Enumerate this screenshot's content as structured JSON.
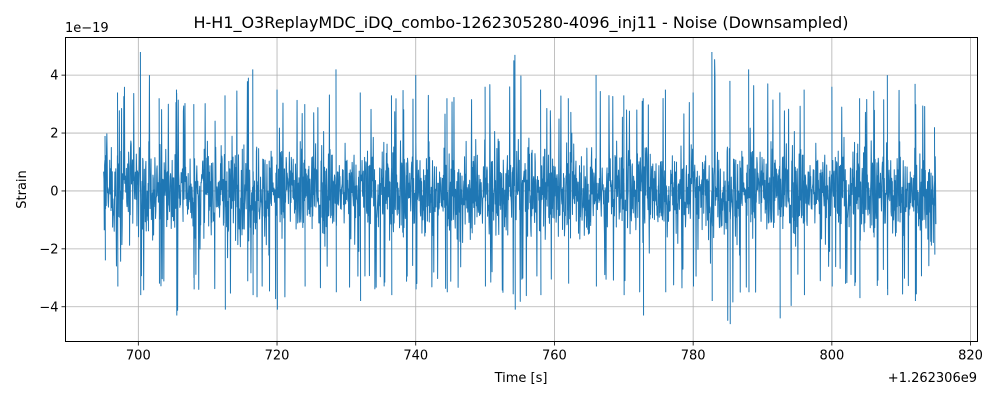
{
  "chart_data": {
    "type": "line",
    "title": "H-H1_O3ReplayMDC_iDQ_combo-1262305280-4096_inj11 - Noise (Downsampled)",
    "xlabel": "Time [s]",
    "ylabel": "Strain",
    "x_offset_label": "+1.262306e9",
    "y_scale_label": "1e−19",
    "xlim": [
      689.5,
      821
    ],
    "ylim": [
      -5.2,
      5.3
    ],
    "x_ticks": [
      700,
      720,
      740,
      760,
      780,
      800,
      820
    ],
    "x_tick_labels": [
      "700",
      "720",
      "740",
      "760",
      "780",
      "800",
      "820"
    ],
    "y_ticks": [
      -4,
      -2,
      0,
      2,
      4
    ],
    "y_tick_labels": [
      "−4",
      "−2",
      "0",
      "2",
      "4"
    ],
    "grid": true,
    "series": [
      {
        "color": "#1f77b4",
        "x_start": 695.0,
        "x_end": 815.0,
        "envelope": {
          "x": [
            695.2,
            697.0,
            700.3,
            703.0,
            705.5,
            708.0,
            712.5,
            716.5,
            720.0,
            724.0,
            728.5,
            732.0,
            736.5,
            740.0,
            744.5,
            750.0,
            754.3,
            758.0,
            762.0,
            766.0,
            770.0,
            772.8,
            776.0,
            780.0,
            782.7,
            785.3,
            788.0,
            792.5,
            796.0,
            800.0,
            804.0,
            808.0,
            812.0,
            814.8
          ],
          "upper": [
            1.9,
            3.4,
            4.8,
            3.2,
            3.5,
            3.0,
            3.3,
            4.2,
            3.5,
            3.0,
            4.2,
            3.4,
            3.3,
            4.0,
            3.2,
            3.6,
            4.7,
            3.5,
            3.2,
            4.0,
            3.3,
            3.2,
            3.5,
            3.4,
            4.8,
            3.8,
            4.2,
            3.4,
            3.5,
            3.6,
            3.2,
            4.0,
            3.7,
            2.2
          ],
          "lower": [
            -2.4,
            -3.3,
            -3.6,
            -3.2,
            -4.3,
            -3.4,
            -4.1,
            -3.6,
            -4.1,
            -3.3,
            -3.5,
            -3.8,
            -3.6,
            -3.4,
            -3.5,
            -3.3,
            -4.1,
            -3.6,
            -3.2,
            -3.3,
            -3.6,
            -4.3,
            -3.5,
            -3.3,
            -3.8,
            -4.6,
            -3.5,
            -4.4,
            -3.6,
            -3.3,
            -3.7,
            -3.6,
            -3.8,
            -2.2
          ]
        },
        "typical_amplitude": 1.3
      }
    ]
  }
}
